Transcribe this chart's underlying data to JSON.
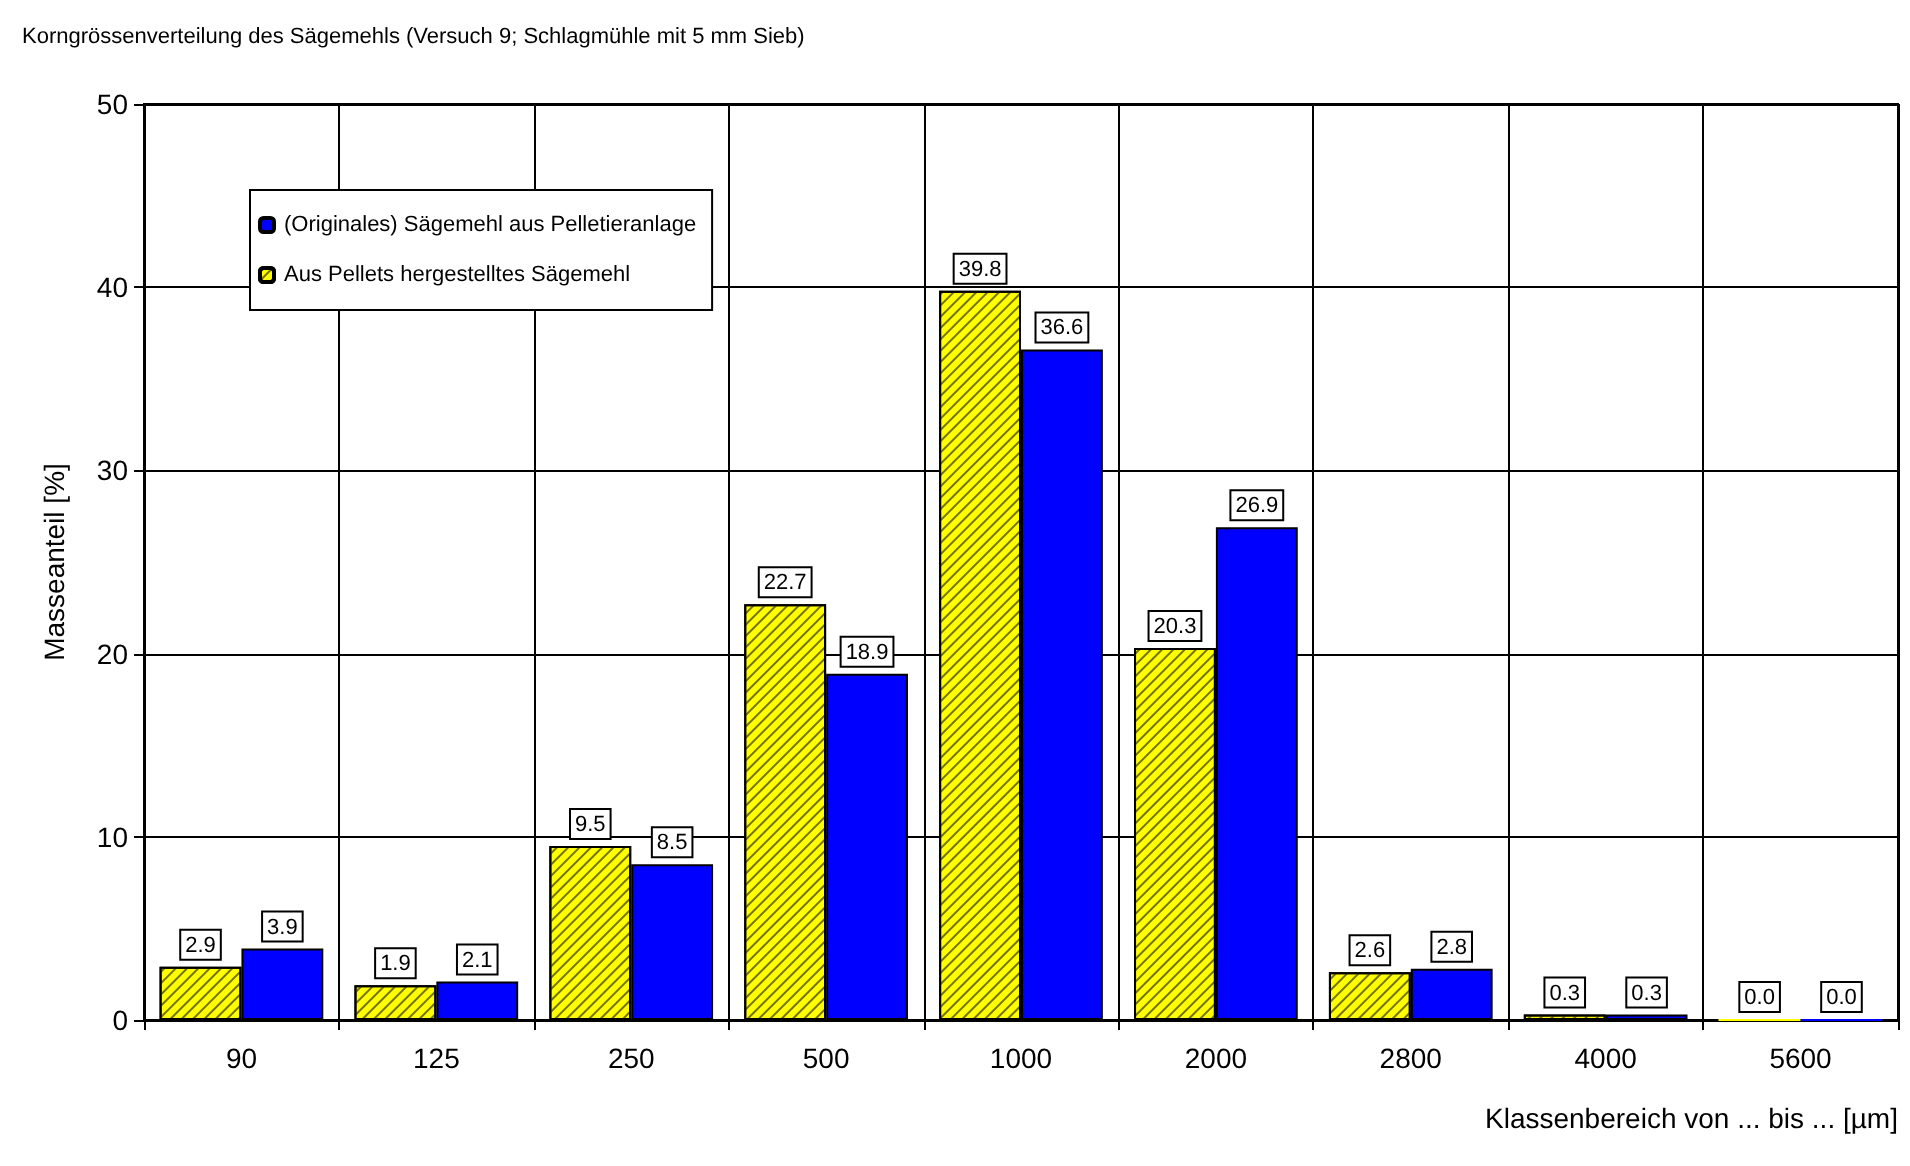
{
  "chart_data": {
    "type": "bar",
    "title": "Korngrössenverteilung des Sägemehls (Versuch 9; Schlagmühle mit 5 mm Sieb)",
    "xlabel": "Klassenbereich von ... bis ... [µm]",
    "ylabel": "Masseanteil [%]",
    "categories": [
      "90",
      "125",
      "250",
      "500",
      "1000",
      "2000",
      "2800",
      "4000",
      "5600"
    ],
    "series": [
      {
        "name": "Aus Pellets hergestelltes Sägemehl",
        "color": "#ffff00",
        "values": [
          2.9,
          1.9,
          9.5,
          22.7,
          39.8,
          20.3,
          2.6,
          0.3,
          0.0
        ],
        "value_labels": [
          "2.9",
          "1.9",
          "9.5",
          "22.7",
          "39.8",
          "20.3",
          "2.6",
          "0.3",
          "0.0"
        ]
      },
      {
        "name": "(Originales) Sägemehl aus Pelletieranlage",
        "color": "#0000ff",
        "values": [
          3.9,
          2.1,
          8.5,
          18.9,
          36.6,
          26.9,
          2.8,
          0.3,
          0.0
        ],
        "value_labels": [
          "3.9",
          "2.1",
          "8.5",
          "18.9",
          "36.6",
          "26.9",
          "2.8",
          "0.3",
          "0.0"
        ]
      }
    ],
    "ylim": [
      0,
      50
    ],
    "yticks": [
      0,
      10,
      20,
      30,
      40,
      50
    ],
    "grid": true,
    "legend": "top left"
  }
}
